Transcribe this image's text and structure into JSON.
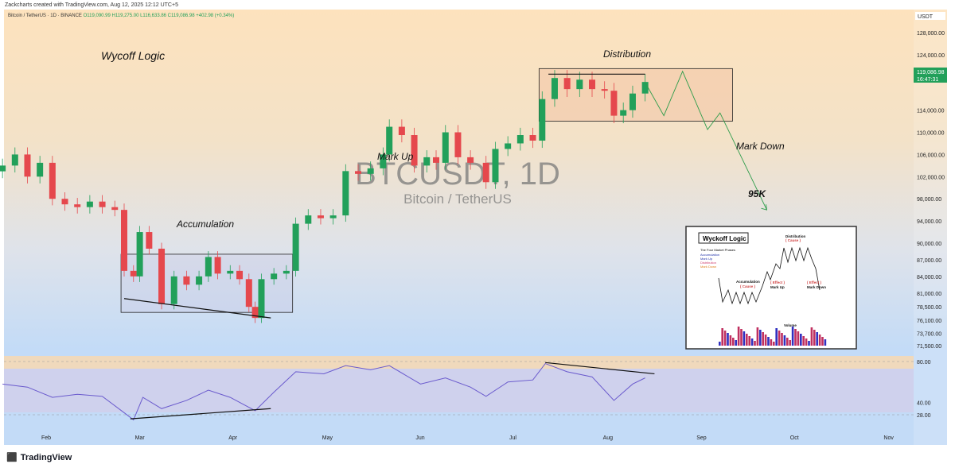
{
  "header": {
    "credit": "Zackcharts created with TradingView.com, Aug 12, 2025 12:12 UTC+5",
    "symbol": "Bitcoin / TetherUS · 1D · BINANCE",
    "ohlc": "O119,090.99 H119,275.00 L116,633.86 C119,086.98 +402.98 (+0.34%)"
  },
  "footer": {
    "brand": "TradingView"
  },
  "watermark": {
    "symbol": "BTCUSDT, 1D",
    "name": "Bitcoin / TetherUS"
  },
  "colors": {
    "up": "#22a05a",
    "down": "#e5484d",
    "rsi": "#6a5acd",
    "price_label": "#22a05a"
  },
  "chart_data": {
    "type": "candlestick",
    "currency": "USDT",
    "price_label": {
      "value": "119,086.98",
      "countdown": "16:47:31"
    },
    "y_ticks": [
      "128,000.00",
      "124,000.00",
      "114,000.00",
      "110,000.00",
      "106,000.00",
      "102,000.00",
      "98,000.00",
      "94,000.00",
      "90,000.00",
      "87,000.00",
      "84,000.00",
      "81,000.00",
      "78,500.00",
      "76,100.00",
      "73,700.00",
      "71,500.00"
    ],
    "x_ticks": [
      "Feb",
      "Mar",
      "Apr",
      "May",
      "Jun",
      "Jul",
      "Aug",
      "Sep",
      "Oct",
      "Nov"
    ],
    "closes": [
      [
        "2025-01-18",
        104000
      ],
      [
        "2025-01-22",
        106000
      ],
      [
        "2025-01-26",
        102000
      ],
      [
        "2025-01-30",
        104500
      ],
      [
        "2025-02-03",
        98000
      ],
      [
        "2025-02-07",
        97000
      ],
      [
        "2025-02-11",
        96500
      ],
      [
        "2025-02-15",
        97500
      ],
      [
        "2025-02-19",
        96500
      ],
      [
        "2025-02-23",
        96000
      ],
      [
        "2025-02-26",
        85000
      ],
      [
        "2025-03-01",
        84000
      ],
      [
        "2025-03-03",
        92000
      ],
      [
        "2025-03-06",
        89000
      ],
      [
        "2025-03-10",
        79000
      ],
      [
        "2025-03-14",
        84000
      ],
      [
        "2025-03-18",
        82500
      ],
      [
        "2025-03-22",
        84000
      ],
      [
        "2025-03-25",
        87500
      ],
      [
        "2025-03-28",
        84500
      ],
      [
        "2025-04-01",
        85000
      ],
      [
        "2025-04-04",
        83500
      ],
      [
        "2025-04-07",
        78500
      ],
      [
        "2025-04-09",
        76500
      ],
      [
        "2025-04-11",
        83500
      ],
      [
        "2025-04-15",
        84500
      ],
      [
        "2025-04-19",
        85000
      ],
      [
        "2025-04-22",
        93500
      ],
      [
        "2025-04-26",
        95000
      ],
      [
        "2025-04-30",
        94500
      ],
      [
        "2025-05-04",
        95000
      ],
      [
        "2025-05-08",
        103000
      ],
      [
        "2025-05-12",
        102500
      ],
      [
        "2025-05-16",
        103500
      ],
      [
        "2025-05-20",
        106000
      ],
      [
        "2025-05-22",
        111000
      ],
      [
        "2025-05-26",
        109500
      ],
      [
        "2025-05-30",
        104000
      ],
      [
        "2025-06-03",
        105500
      ],
      [
        "2025-06-06",
        104500
      ],
      [
        "2025-06-09",
        110000
      ],
      [
        "2025-06-13",
        105500
      ],
      [
        "2025-06-17",
        104500
      ],
      [
        "2025-06-22",
        101000
      ],
      [
        "2025-06-25",
        107000
      ],
      [
        "2025-06-29",
        108000
      ],
      [
        "2025-07-03",
        109500
      ],
      [
        "2025-07-07",
        108500
      ],
      [
        "2025-07-10",
        116000
      ],
      [
        "2025-07-14",
        119800
      ],
      [
        "2025-07-18",
        117800
      ],
      [
        "2025-07-22",
        119500
      ],
      [
        "2025-07-26",
        117800
      ],
      [
        "2025-07-30",
        117500
      ],
      [
        "2025-08-02",
        113000
      ],
      [
        "2025-08-05",
        114000
      ],
      [
        "2025-08-08",
        117000
      ],
      [
        "2025-08-12",
        119087
      ]
    ],
    "rsi": {
      "ticks": [
        "80.00",
        "40.00",
        "28.00"
      ],
      "values": [
        [
          "2025-01-18",
          58
        ],
        [
          "2025-01-26",
          55
        ],
        [
          "2025-02-03",
          45
        ],
        [
          "2025-02-11",
          48
        ],
        [
          "2025-02-19",
          46
        ],
        [
          "2025-02-26",
          30
        ],
        [
          "2025-03-01",
          23
        ],
        [
          "2025-03-04",
          45
        ],
        [
          "2025-03-10",
          34
        ],
        [
          "2025-03-18",
          42
        ],
        [
          "2025-03-25",
          52
        ],
        [
          "2025-04-01",
          45
        ],
        [
          "2025-04-09",
          32
        ],
        [
          "2025-04-15",
          50
        ],
        [
          "2025-04-22",
          70
        ],
        [
          "2025-05-01",
          68
        ],
        [
          "2025-05-08",
          76
        ],
        [
          "2025-05-16",
          72
        ],
        [
          "2025-05-22",
          76
        ],
        [
          "2025-06-01",
          58
        ],
        [
          "2025-06-09",
          64
        ],
        [
          "2025-06-17",
          55
        ],
        [
          "2025-06-22",
          46
        ],
        [
          "2025-06-29",
          60
        ],
        [
          "2025-07-07",
          62
        ],
        [
          "2025-07-11",
          78
        ],
        [
          "2025-07-18",
          70
        ],
        [
          "2025-07-26",
          65
        ],
        [
          "2025-08-02",
          42
        ],
        [
          "2025-08-08",
          58
        ],
        [
          "2025-08-12",
          64
        ]
      ]
    },
    "annotations": {
      "title": "Wycoff Logic",
      "accumulation": "Accumulation",
      "markup": "Mark Up",
      "distribution": "Distribution",
      "markdown": "Mark Down",
      "target": "95K"
    },
    "boxes": {
      "accumulation": {
        "from": "2025-02-25",
        "to": "2025-04-21",
        "high": 88000,
        "low": 77500
      },
      "distribution": {
        "from": "2025-07-09",
        "to": "2025-09-09",
        "high": 121500,
        "low": 112000
      }
    },
    "projection": [
      [
        "2025-08-12",
        119000
      ],
      [
        "2025-08-18",
        113000
      ],
      [
        "2025-08-24",
        121000
      ],
      [
        "2025-09-01",
        110500
      ],
      [
        "2025-09-05",
        113500
      ],
      [
        "2025-09-20",
        96000
      ]
    ],
    "trendlines": {
      "acc": [
        [
          "2025-02-26",
          80000
        ],
        [
          "2025-04-14",
          76500
        ]
      ],
      "dist": [
        [
          "2025-07-12",
          120500
        ],
        [
          "2025-08-12",
          120500
        ]
      ],
      "rsi_low": [
        [
          "2025-02-28",
          24
        ],
        [
          "2025-04-14",
          34
        ]
      ],
      "rsi_high": [
        [
          "2025-07-11",
          79
        ],
        [
          "2025-08-15",
          68
        ]
      ]
    },
    "inset": {
      "title": "Wyckoff Logic",
      "phases_heading": "The Four Market Phases",
      "phases": [
        "Accumulation",
        "Mark Up",
        "Distribution",
        "Mark Down"
      ],
      "labels": [
        "Accumulation",
        "( Cause )",
        "( Effect )",
        "Mark Up",
        "Distribution",
        "( Cause )",
        "( Effect )",
        "Mark Down",
        "Volume"
      ]
    }
  }
}
